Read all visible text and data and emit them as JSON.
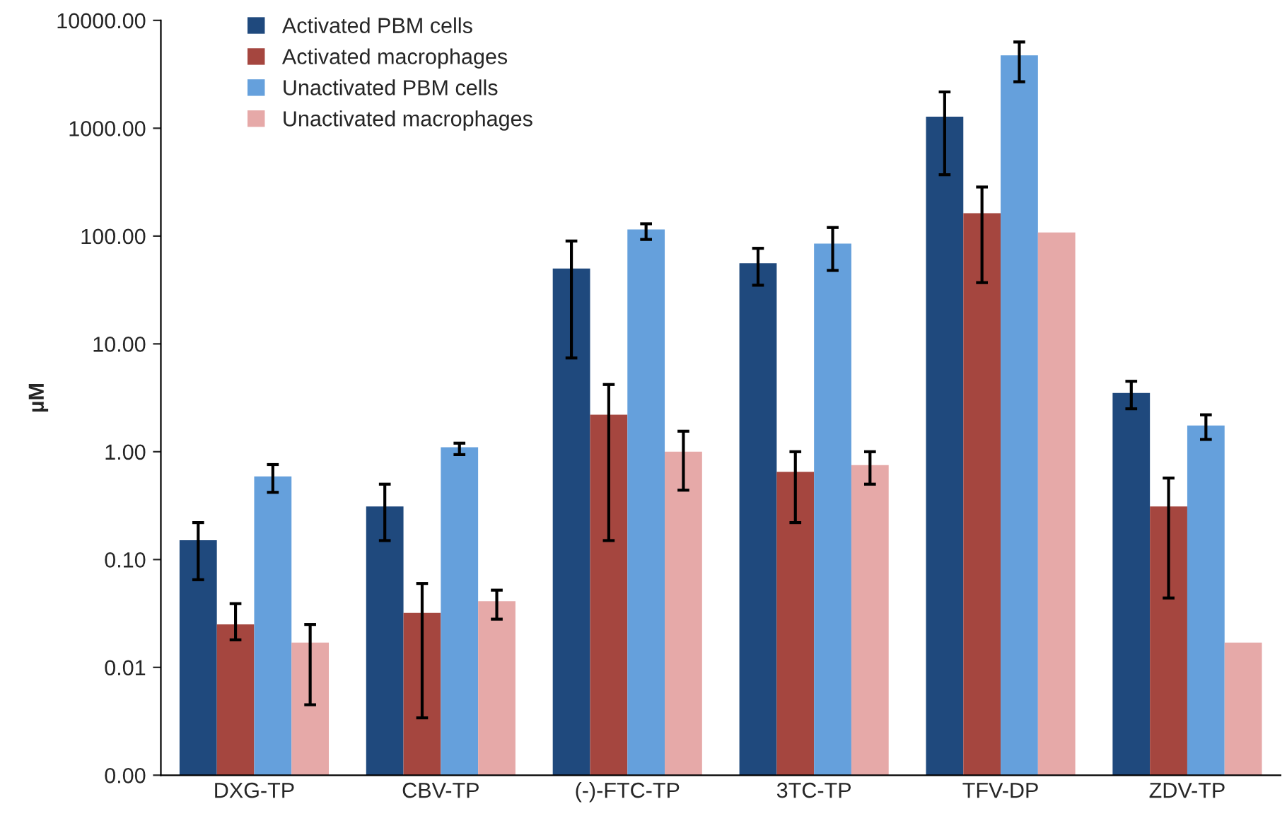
{
  "chart_data": {
    "type": "bar",
    "ylabel": "µM",
    "log": true,
    "legend": "top left",
    "grid": false,
    "categories": [
      "DXG-TP",
      "CBV-TP",
      "(-)-FTC-TP",
      "3TC-TP",
      "TFV-DP",
      "ZDV-TP"
    ],
    "ylim": [
      0.001,
      10000
    ],
    "yticks": [
      {
        "value": 0.001,
        "label": "0.00"
      },
      {
        "value": 0.01,
        "label": "0.01"
      },
      {
        "value": 0.1,
        "label": "0.10"
      },
      {
        "value": 1,
        "label": "1.00"
      },
      {
        "value": 10,
        "label": "10.00"
      },
      {
        "value": 100,
        "label": "100.00"
      },
      {
        "value": 1000,
        "label": "1000.00"
      },
      {
        "value": 10000,
        "label": "10000.00"
      }
    ],
    "series": [
      {
        "name": "Activated PBM cells",
        "color": "#1f497d",
        "values": [
          0.15,
          0.31,
          50,
          56,
          1280,
          3.5
        ],
        "errors": [
          [
            0.065,
            0.22
          ],
          [
            0.15,
            0.5
          ],
          [
            7.4,
            90
          ],
          [
            35,
            77
          ],
          [
            370,
            2170
          ],
          [
            2.5,
            4.5
          ]
        ]
      },
      {
        "name": "Activated macrophages",
        "color": "#a5463f",
        "values": [
          0.024,
          0.031,
          2.2,
          0.65,
          163,
          0.31
        ],
        "errors": [
          [
            0.018,
            0.039
          ],
          [
            0.0034,
            0.06
          ],
          [
            0.15,
            4.2
          ],
          [
            0.22,
            1.0
          ],
          [
            37,
            285
          ],
          [
            0.044,
            0.57
          ]
        ]
      },
      {
        "name": "Unactivated PBM cells",
        "color": "#65a0dc",
        "values": [
          0.59,
          1.1,
          115,
          85,
          4750,
          1.75
        ],
        "errors": [
          [
            0.42,
            0.76
          ],
          [
            0.94,
            1.2
          ],
          [
            93,
            130
          ],
          [
            48,
            120
          ],
          [
            2700,
            6300
          ],
          [
            1.3,
            2.2
          ]
        ]
      },
      {
        "name": "Unactivated macrophages",
        "color": "#e6a9a8",
        "values": [
          0.016,
          0.04,
          1.0,
          0.75,
          108,
          0.016
        ],
        "errors": [
          [
            0.0045,
            0.025
          ],
          [
            0.028,
            0.052
          ],
          [
            0.44,
            1.55
          ],
          [
            0.5,
            1.0
          ],
          null,
          null
        ]
      }
    ]
  }
}
